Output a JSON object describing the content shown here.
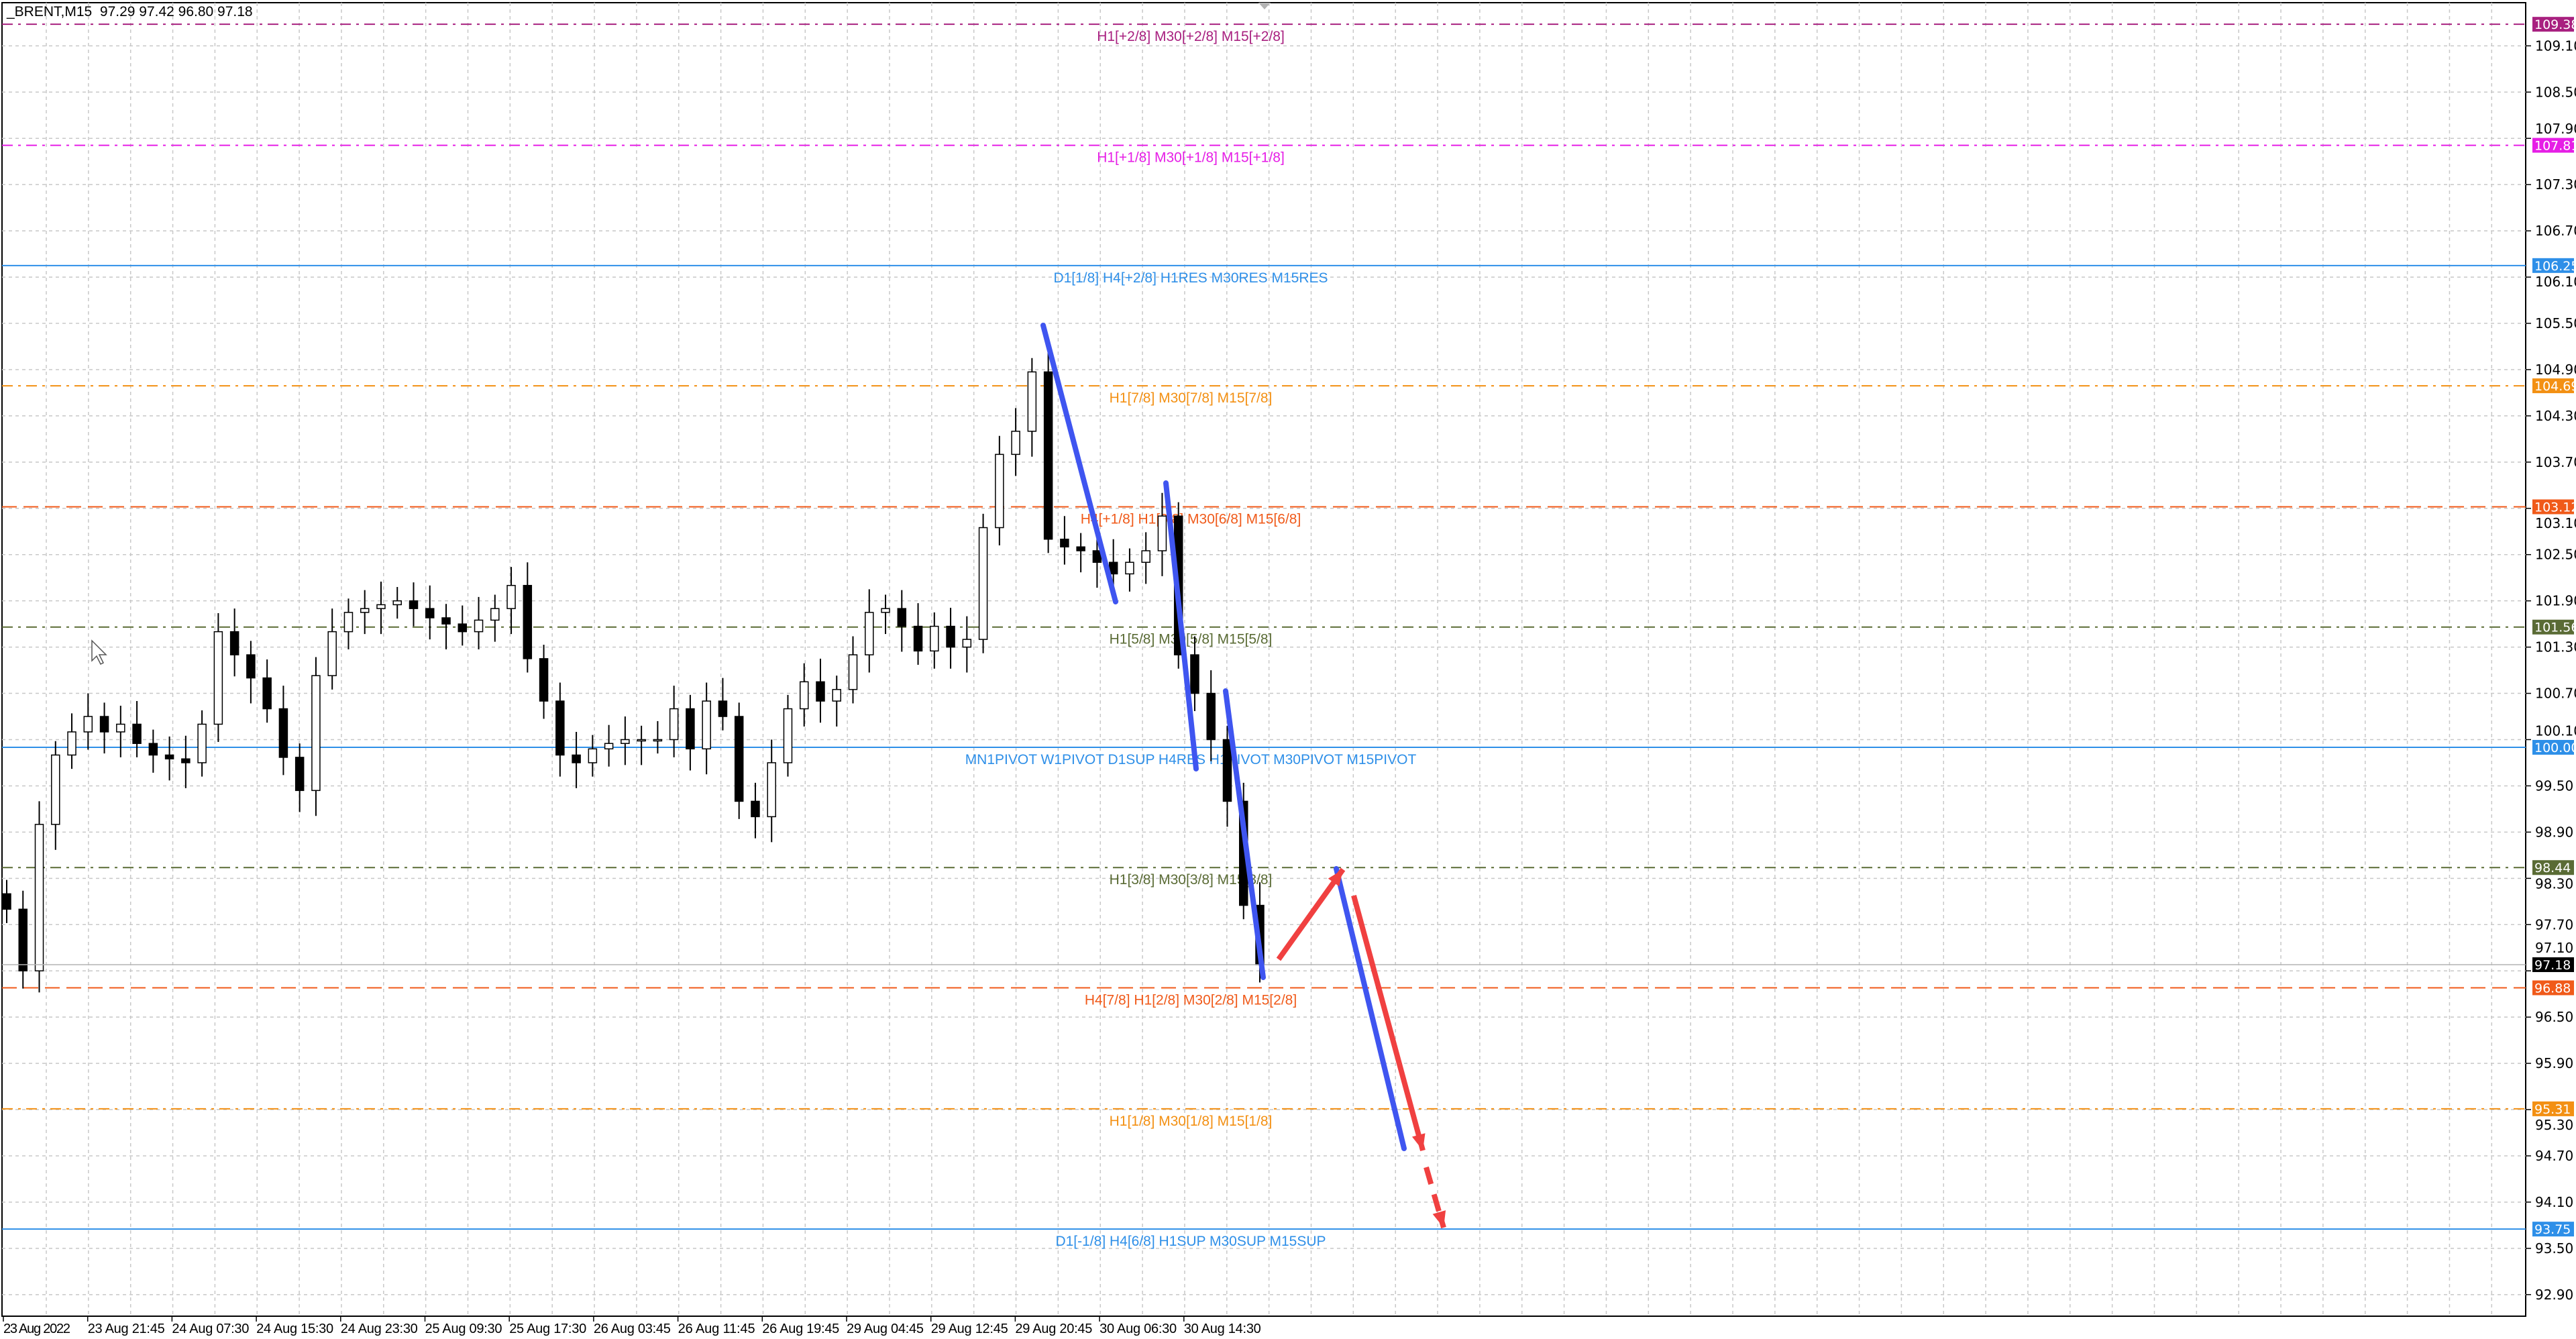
{
  "header": {
    "symbol_timeframe": "_BRENT,M15",
    "ohlc": "97.29 97.42 96.80 97.18"
  },
  "chart_data": {
    "type": "candlestick",
    "symbol": "_BRENT",
    "timeframe": "M15",
    "grid": true,
    "y_ticks": [
      "109.10",
      "108.50",
      "107.90",
      "107.30",
      "106.70",
      "106.10",
      "105.50",
      "104.90",
      "104.30",
      "103.70",
      "103.10",
      "102.50",
      "101.90",
      "101.30",
      "100.70",
      "100.10",
      "99.50",
      "98.90",
      "98.30",
      "97.70",
      "97.10",
      "96.50",
      "95.90",
      "95.30",
      "94.70",
      "94.10",
      "93.50",
      "92.90"
    ],
    "ylim": [
      92.62,
      109.66
    ],
    "x_ticks": [
      "23 Aug 2022",
      "23 Aug 21:45",
      "24 Aug 07:30",
      "24 Aug 15:30",
      "24 Aug 23:30",
      "25 Aug 09:30",
      "25 Aug 17:30",
      "26 Aug 03:45",
      "26 Aug 11:45",
      "26 Aug 19:45",
      "29 Aug 04:45",
      "29 Aug 12:45",
      "29 Aug 20:45",
      "30 Aug 06:30",
      "30 Aug 14:30"
    ],
    "closes_approx": [
      97.9,
      97.1,
      99.0,
      99.9,
      100.2,
      100.4,
      100.2,
      100.3,
      100.05,
      99.9,
      99.85,
      99.8,
      100.3,
      101.5,
      101.2,
      100.9,
      100.5,
      99.87,
      99.44,
      100.93,
      101.5,
      101.75,
      101.8,
      101.85,
      101.9,
      101.8,
      101.68,
      101.6,
      101.5,
      101.65,
      101.8,
      102.1,
      101.15,
      100.6,
      99.9,
      99.8,
      99.98,
      100.05,
      100.1,
      100.1,
      100.1,
      100.5,
      99.98,
      100.6,
      100.4,
      99.3,
      99.1,
      99.8,
      100.5,
      100.85,
      100.6,
      100.75,
      101.2,
      101.75,
      101.8,
      101.57,
      101.25,
      101.57,
      101.3,
      101.4,
      102.85,
      103.8,
      104.1,
      104.87,
      102.7,
      102.6,
      102.55,
      102.4,
      102.25,
      102.4,
      102.55,
      103.0,
      101.2,
      100.7,
      100.1,
      99.3,
      97.95,
      97.18
    ],
    "period_high": 105.3,
    "last_price": {
      "value": "97.18",
      "color": "#000000"
    },
    "levels": [
      {
        "price": 109.38,
        "tag": "109.38",
        "label": "H1[+2/8] M30[+2/8] M15[+2/8]",
        "color": "#a8207f",
        "style": "dashdot"
      },
      {
        "price": 107.81,
        "tag": "107.81",
        "label": "H1[+1/8] M30[+1/8] M15[+1/8]",
        "color": "#e61ee6",
        "style": "dashdot"
      },
      {
        "price": 106.25,
        "tag": "106.25",
        "label": "D1[1/8] H4[+2/8] H1RES M30RES M15RES",
        "color": "#2e8fe8",
        "style": "solid"
      },
      {
        "price": 104.69,
        "tag": "104.69",
        "label": "H1[7/8] M30[7/8] M15[7/8]",
        "color": "#f39013",
        "style": "dashdot"
      },
      {
        "price": 103.12,
        "tag": "103.12",
        "label": "H4[+1/8] H1[6/8] M30[6/8] M15[6/8]",
        "color": "#f05a1a",
        "style": "dashed"
      },
      {
        "price": 101.56,
        "tag": "101.56",
        "label": "H1[5/8] M30[5/8] M15[5/8]",
        "color": "#5a6b35",
        "style": "dashdot"
      },
      {
        "price": 100.0,
        "tag": "100.00",
        "label": "MN1PIVOT W1PIVOT D1SUP H4RES H1PIVOT M30PIVOT M15PIVOT",
        "color": "#2e8fe8",
        "style": "solid"
      },
      {
        "price": 98.44,
        "tag": "98.44",
        "label": "H1[3/8] M30[3/8] M15[3/8]",
        "color": "#5a6b35",
        "style": "dashdot"
      },
      {
        "price": 96.88,
        "tag": "96.88",
        "label": "H4[7/8] H1[2/8] M30[2/8] M15[2/8]",
        "color": "#f05a1a",
        "style": "dashed"
      },
      {
        "price": 95.31,
        "tag": "95.31",
        "label": "H1[1/8] M30[1/8] M15[1/8]",
        "color": "#f39013",
        "style": "dashdot"
      },
      {
        "price": 93.75,
        "tag": "93.75",
        "label": "D1[-1/8] H4[6/8] H1SUP M30SUP M15SUP",
        "color": "#2e8fe8",
        "style": "solid"
      }
    ],
    "drawings": {
      "trend_color": "#3f55f0",
      "arrow_color": "#f04040"
    }
  }
}
